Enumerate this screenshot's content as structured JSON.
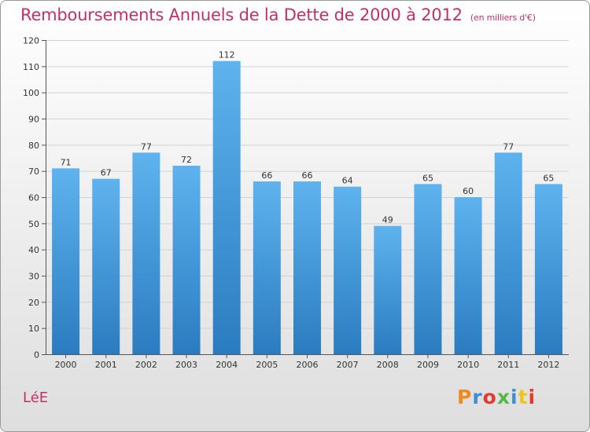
{
  "header": {
    "title": "Remboursements Annuels de la Dette de 2000 à 2012",
    "unit": "(en milliers d'€)"
  },
  "footer": {
    "commune": "LéE",
    "logo_text": "Proxiti",
    "logo_colors": [
      "#f08a1e",
      "#3a8fd6",
      "#e23c2a",
      "#56b947",
      "#3a8fd6",
      "#f0c419",
      "#e23c2a"
    ]
  },
  "colors": {
    "accent": "#c2306a",
    "bar_top": "#5eb3ee",
    "bar_bottom": "#2a7cc0"
  },
  "chart_data": {
    "type": "bar",
    "title": "Remboursements Annuels de la Dette de 2000 à 2012",
    "subtitle": "(en milliers d'€)",
    "categories": [
      "2000",
      "2001",
      "2002",
      "2003",
      "2004",
      "2005",
      "2006",
      "2007",
      "2008",
      "2009",
      "2010",
      "2011",
      "2012"
    ],
    "values": [
      71,
      67,
      77,
      72,
      112,
      66,
      66,
      64,
      49,
      65,
      60,
      77,
      65
    ],
    "ylim": [
      0,
      120
    ],
    "yticks": [
      0,
      10,
      20,
      30,
      40,
      50,
      60,
      70,
      80,
      90,
      100,
      110,
      120
    ],
    "grid": true,
    "xlabel": "",
    "ylabel": ""
  }
}
